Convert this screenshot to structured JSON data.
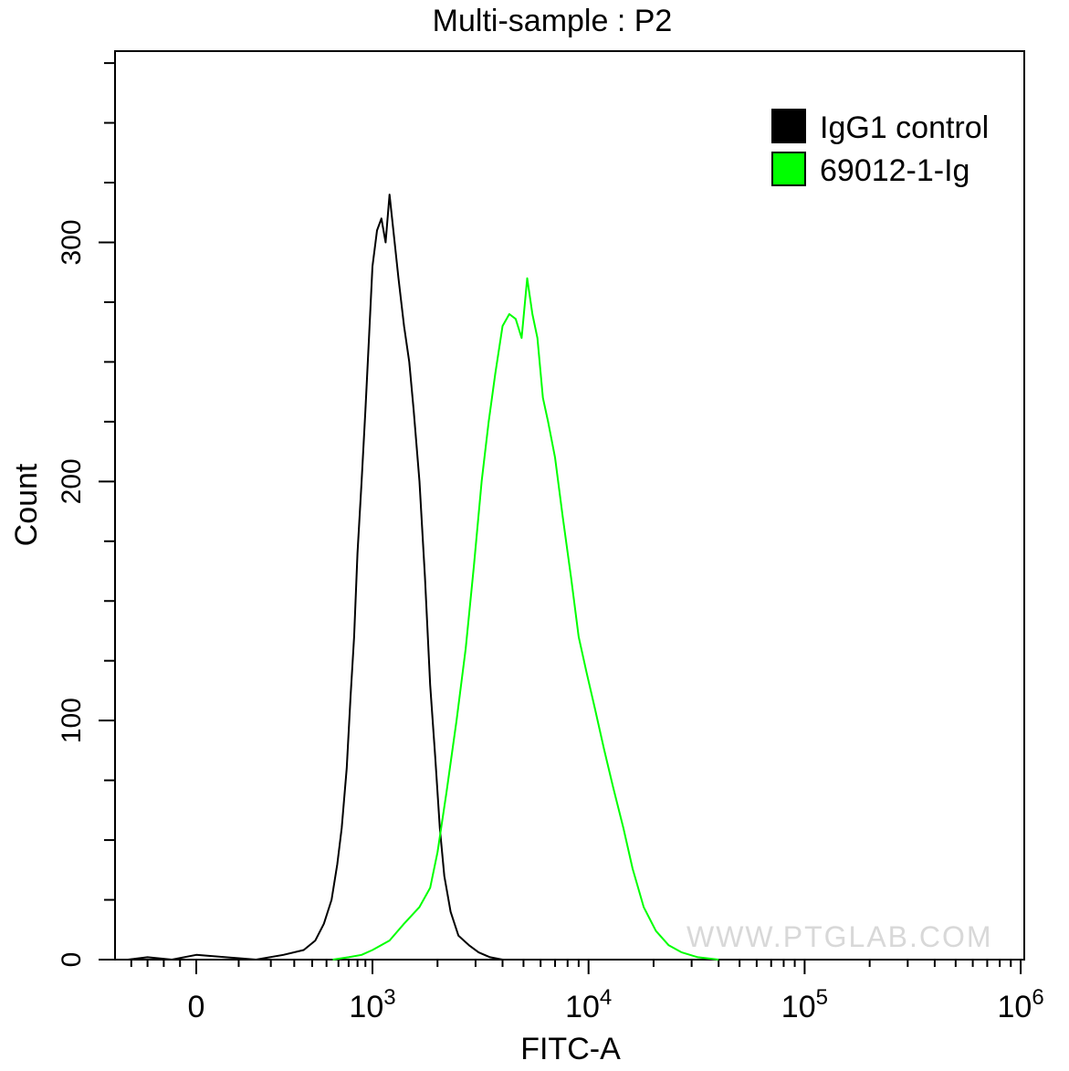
{
  "chart_data": {
    "type": "line",
    "title": "Multi-sample : P2",
    "xlabel": "FITC-A",
    "ylabel": "Count",
    "x_scale": "biexponential",
    "xlim": [
      -500,
      1000000
    ],
    "ylim": [
      0,
      380
    ],
    "y_ticks": [
      0,
      100,
      200,
      300
    ],
    "y_tick_labels": [
      "0",
      "100",
      "200",
      "300"
    ],
    "x_ticks": [
      0,
      1000,
      10000,
      100000,
      1000000
    ],
    "x_tick_labels": [
      {
        "base": "0",
        "exp": ""
      },
      {
        "base": "10",
        "exp": "3"
      },
      {
        "base": "10",
        "exp": "4"
      },
      {
        "base": "10",
        "exp": "5"
      },
      {
        "base": "10",
        "exp": "6"
      }
    ],
    "grid": false,
    "legend_position": "top-right",
    "legend": [
      {
        "label": "IgG1 control",
        "color": "#000000"
      },
      {
        "label": "69012-1-Ig",
        "color": "#00ff00"
      }
    ],
    "watermark": "WWW.PTGLAB.COM",
    "series": [
      {
        "name": "IgG1 control",
        "color": "#000000",
        "points": [
          [
            -420,
            0
          ],
          [
            -300,
            1
          ],
          [
            -150,
            0
          ],
          [
            0,
            2
          ],
          [
            150,
            0
          ],
          [
            250,
            2
          ],
          [
            350,
            4
          ],
          [
            420,
            8
          ],
          [
            480,
            15
          ],
          [
            540,
            25
          ],
          [
            590,
            40
          ],
          [
            630,
            55
          ],
          [
            680,
            80
          ],
          [
            720,
            110
          ],
          [
            760,
            135
          ],
          [
            800,
            170
          ],
          [
            850,
            200
          ],
          [
            900,
            230
          ],
          [
            950,
            260
          ],
          [
            1000,
            290
          ],
          [
            1050,
            305
          ],
          [
            1100,
            310
          ],
          [
            1150,
            300
          ],
          [
            1200,
            320
          ],
          [
            1250,
            305
          ],
          [
            1320,
            285
          ],
          [
            1400,
            265
          ],
          [
            1480,
            250
          ],
          [
            1550,
            230
          ],
          [
            1650,
            200
          ],
          [
            1750,
            160
          ],
          [
            1850,
            115
          ],
          [
            1950,
            85
          ],
          [
            2050,
            55
          ],
          [
            2150,
            35
          ],
          [
            2300,
            20
          ],
          [
            2500,
            10
          ],
          [
            2800,
            6
          ],
          [
            3100,
            3
          ],
          [
            3500,
            1
          ],
          [
            4000,
            0
          ]
        ]
      },
      {
        "name": "69012-1-Ig",
        "color": "#00ff00",
        "points": [
          [
            550,
            0
          ],
          [
            700,
            1
          ],
          [
            850,
            2
          ],
          [
            1000,
            4
          ],
          [
            1200,
            8
          ],
          [
            1400,
            15
          ],
          [
            1650,
            22
          ],
          [
            1850,
            30
          ],
          [
            2000,
            45
          ],
          [
            2200,
            70
          ],
          [
            2450,
            100
          ],
          [
            2700,
            130
          ],
          [
            2950,
            165
          ],
          [
            3200,
            200
          ],
          [
            3450,
            225
          ],
          [
            3700,
            245
          ],
          [
            4000,
            265
          ],
          [
            4300,
            270
          ],
          [
            4600,
            268
          ],
          [
            4900,
            260
          ],
          [
            5200,
            285
          ],
          [
            5500,
            270
          ],
          [
            5800,
            260
          ],
          [
            6150,
            235
          ],
          [
            6500,
            225
          ],
          [
            7000,
            210
          ],
          [
            7600,
            185
          ],
          [
            8300,
            160
          ],
          [
            9000,
            135
          ],
          [
            9800,
            120
          ],
          [
            10700,
            105
          ],
          [
            11800,
            88
          ],
          [
            13000,
            72
          ],
          [
            14500,
            55
          ],
          [
            16000,
            38
          ],
          [
            18000,
            22
          ],
          [
            20500,
            12
          ],
          [
            23500,
            6
          ],
          [
            27000,
            3
          ],
          [
            32000,
            1
          ],
          [
            40000,
            0
          ]
        ]
      }
    ]
  }
}
